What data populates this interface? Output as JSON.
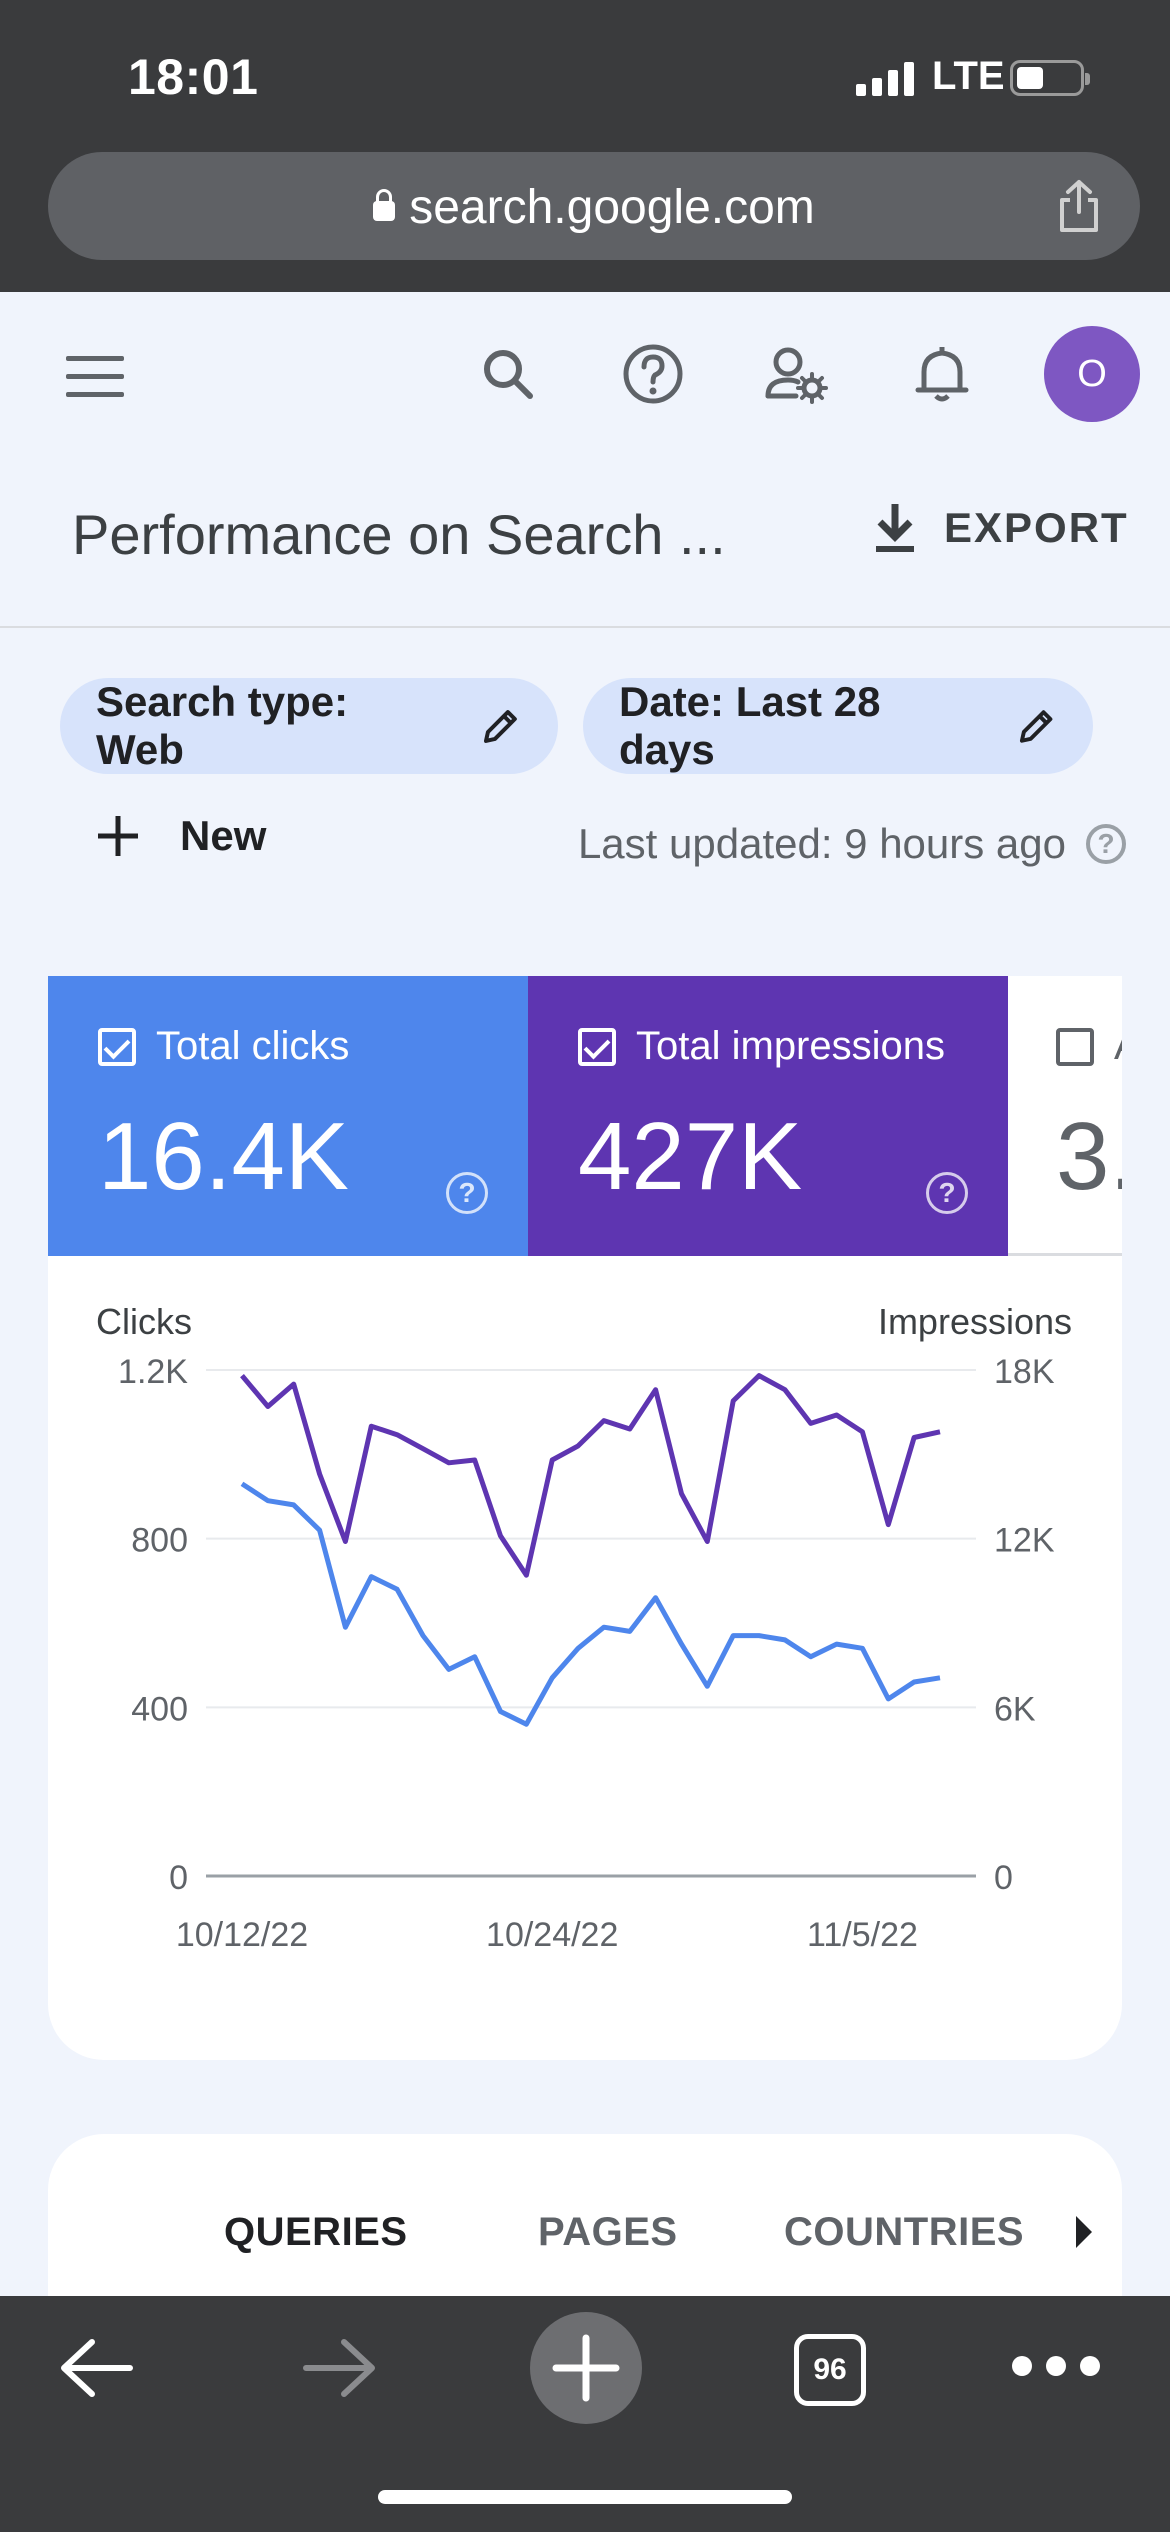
{
  "status_bar": {
    "time": "18:01",
    "network": "LTE"
  },
  "browser": {
    "url": "search.google.com",
    "tabs_count": "96"
  },
  "header": {
    "avatar_initial": "O",
    "title": "Performance on Search ...",
    "export_label": "EXPORT"
  },
  "filters": {
    "search_type": "Search type: Web",
    "date": "Date: Last 28 days",
    "new_label": "New",
    "last_updated": "Last updated: 9 hours ago"
  },
  "metrics": [
    {
      "label": "Total clicks",
      "value": "16.4K",
      "checked": true,
      "color": "#4e86ec"
    },
    {
      "label": "Total impressions",
      "value": "427K",
      "checked": true,
      "color": "#5e35b1"
    },
    {
      "label": "A",
      "value": "3.",
      "checked": false,
      "color": "#ffffff"
    }
  ],
  "chart_data": {
    "type": "line",
    "left_axis_label": "Clicks",
    "right_axis_label": "Impressions",
    "left_ticks": [
      "0",
      "400",
      "800",
      "1.2K"
    ],
    "right_ticks": [
      "0",
      "6K",
      "12K",
      "18K"
    ],
    "left_ylim": [
      0,
      1200
    ],
    "right_ylim": [
      0,
      18000
    ],
    "x_tick_labels": [
      "10/12/22",
      "10/24/22",
      "11/5/22"
    ],
    "grid": true,
    "series": [
      {
        "name": "Clicks",
        "axis": "left",
        "color": "#4e86ec",
        "values": [
          930,
          890,
          880,
          820,
          590,
          710,
          680,
          570,
          490,
          520,
          390,
          360,
          470,
          540,
          590,
          580,
          660,
          550,
          450,
          570,
          570,
          560,
          520,
          550,
          540,
          420,
          460,
          470
        ]
      },
      {
        "name": "Impressions",
        "axis": "right",
        "color": "#5e35b1",
        "values": [
          17800,
          16700,
          17500,
          14300,
          11900,
          16000,
          15700,
          15200,
          14700,
          14800,
          12100,
          10700,
          14800,
          15300,
          16200,
          15900,
          17300,
          13600,
          11900,
          16900,
          17800,
          17300,
          16100,
          16400,
          15800,
          12500,
          15600,
          15800
        ]
      }
    ]
  },
  "tabs": [
    "QUERIES",
    "PAGES",
    "COUNTRIES"
  ]
}
